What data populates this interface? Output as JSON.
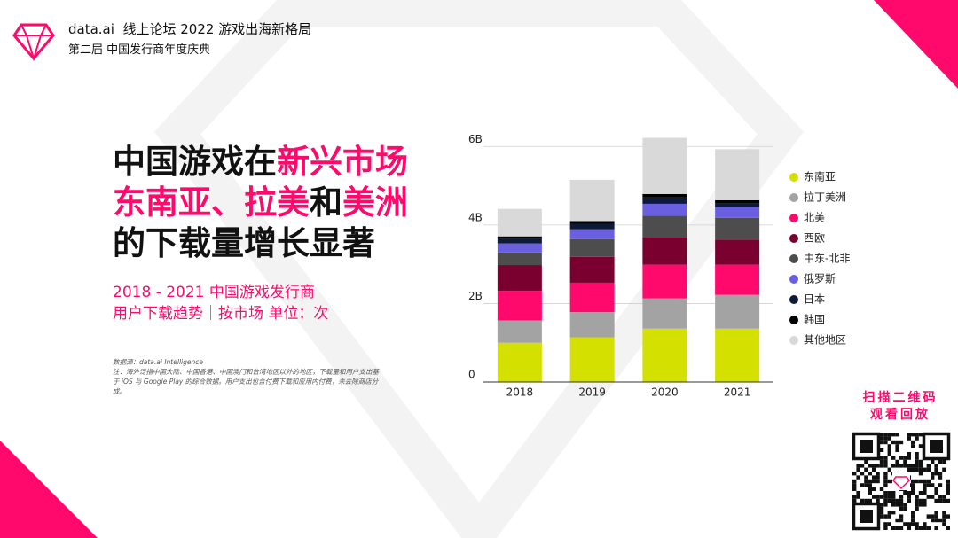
{
  "header": {
    "brand": "data.ai",
    "forum": "线上论坛 2022 游戏出海新格局",
    "event": "第二届 中国发行商年度庆典"
  },
  "headline": [
    [
      "中国游戏在",
      "新兴市场"
    ],
    [
      "东南亚",
      "、",
      "拉美",
      "和",
      "美洲"
    ],
    [
      "的下载量增长显著"
    ]
  ],
  "subtitle": [
    "2018 - 2021 中国游戏发行商",
    "用户下载趋势｜按市场 单位：次"
  ],
  "notes": [
    "数据源：data.ai Intelligence",
    "注：海外泛指中国大陆、中国香港、中国澳门和台湾地区以外的地区，下载量和用户支出基于 iOS 与 Google Play 的综合数据。用户支出包含付费下载和应用内付费，未去除商店分成。"
  ],
  "qr_caption": [
    "扫描二维码",
    "观看回放"
  ],
  "chart_data": {
    "type": "stacked_bar",
    "categories": [
      "2018",
      "2019",
      "2020",
      "2021"
    ],
    "series": [
      {
        "name": "东南亚",
        "color": "#d4e000",
        "values": [
          1000000000,
          1140000000,
          1360000000,
          1360000000
        ]
      },
      {
        "name": "拉丁美洲",
        "color": "#a3a3a3",
        "values": [
          570000000,
          640000000,
          770000000,
          860000000
        ]
      },
      {
        "name": "北美",
        "color": "#ff0a6c",
        "values": [
          750000000,
          750000000,
          860000000,
          770000000
        ]
      },
      {
        "name": "西欧",
        "color": "#7a0030",
        "values": [
          660000000,
          660000000,
          700000000,
          640000000
        ]
      },
      {
        "name": "中东-北非",
        "color": "#4d4d4d",
        "values": [
          320000000,
          450000000,
          550000000,
          550000000
        ]
      },
      {
        "name": "俄罗斯",
        "color": "#6a5fe0",
        "values": [
          230000000,
          250000000,
          300000000,
          270000000
        ]
      },
      {
        "name": "日本",
        "color": "#0d1a3a",
        "values": [
          110000000,
          140000000,
          160000000,
          110000000
        ]
      },
      {
        "name": "韩国",
        "color": "#000000",
        "values": [
          70000000,
          70000000,
          90000000,
          70000000
        ]
      },
      {
        "name": "其他地区",
        "color": "#d9d9d9",
        "values": [
          700000000,
          1050000000,
          1430000000,
          1300000000
        ]
      }
    ],
    "ylim": [
      0,
      6300000000
    ],
    "yticks": [
      0,
      {
        "value": 2000000000,
        "label": "2B"
      },
      {
        "value": 4000000000,
        "label": "4B"
      },
      {
        "value": 6000000000,
        "label": "6B"
      }
    ],
    "grid": true,
    "legend": "right"
  }
}
